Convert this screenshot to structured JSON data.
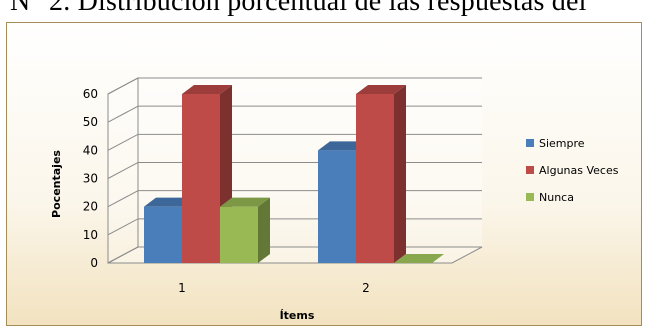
{
  "caption": {
    "text": "N° 2. Distribución porcentual de las respuestas del"
  },
  "chart_data": {
    "type": "bar",
    "style": "3d-clustered-column",
    "categories": [
      "1",
      "2"
    ],
    "series": [
      {
        "name": "Siempre",
        "color": "#4a7ebb",
        "values": [
          20,
          40
        ]
      },
      {
        "name": "Algunas Veces",
        "color": "#be4b48",
        "values": [
          60,
          60
        ]
      },
      {
        "name": "Nunca",
        "color": "#98b954",
        "values": [
          20,
          0
        ]
      }
    ],
    "xlabel": "Ítems",
    "ylabel": "Pocentajes",
    "ylim": [
      0,
      60
    ],
    "yticks": [
      0,
      10,
      20,
      30,
      40,
      50,
      60
    ],
    "grid": true,
    "legend_position": "right"
  }
}
